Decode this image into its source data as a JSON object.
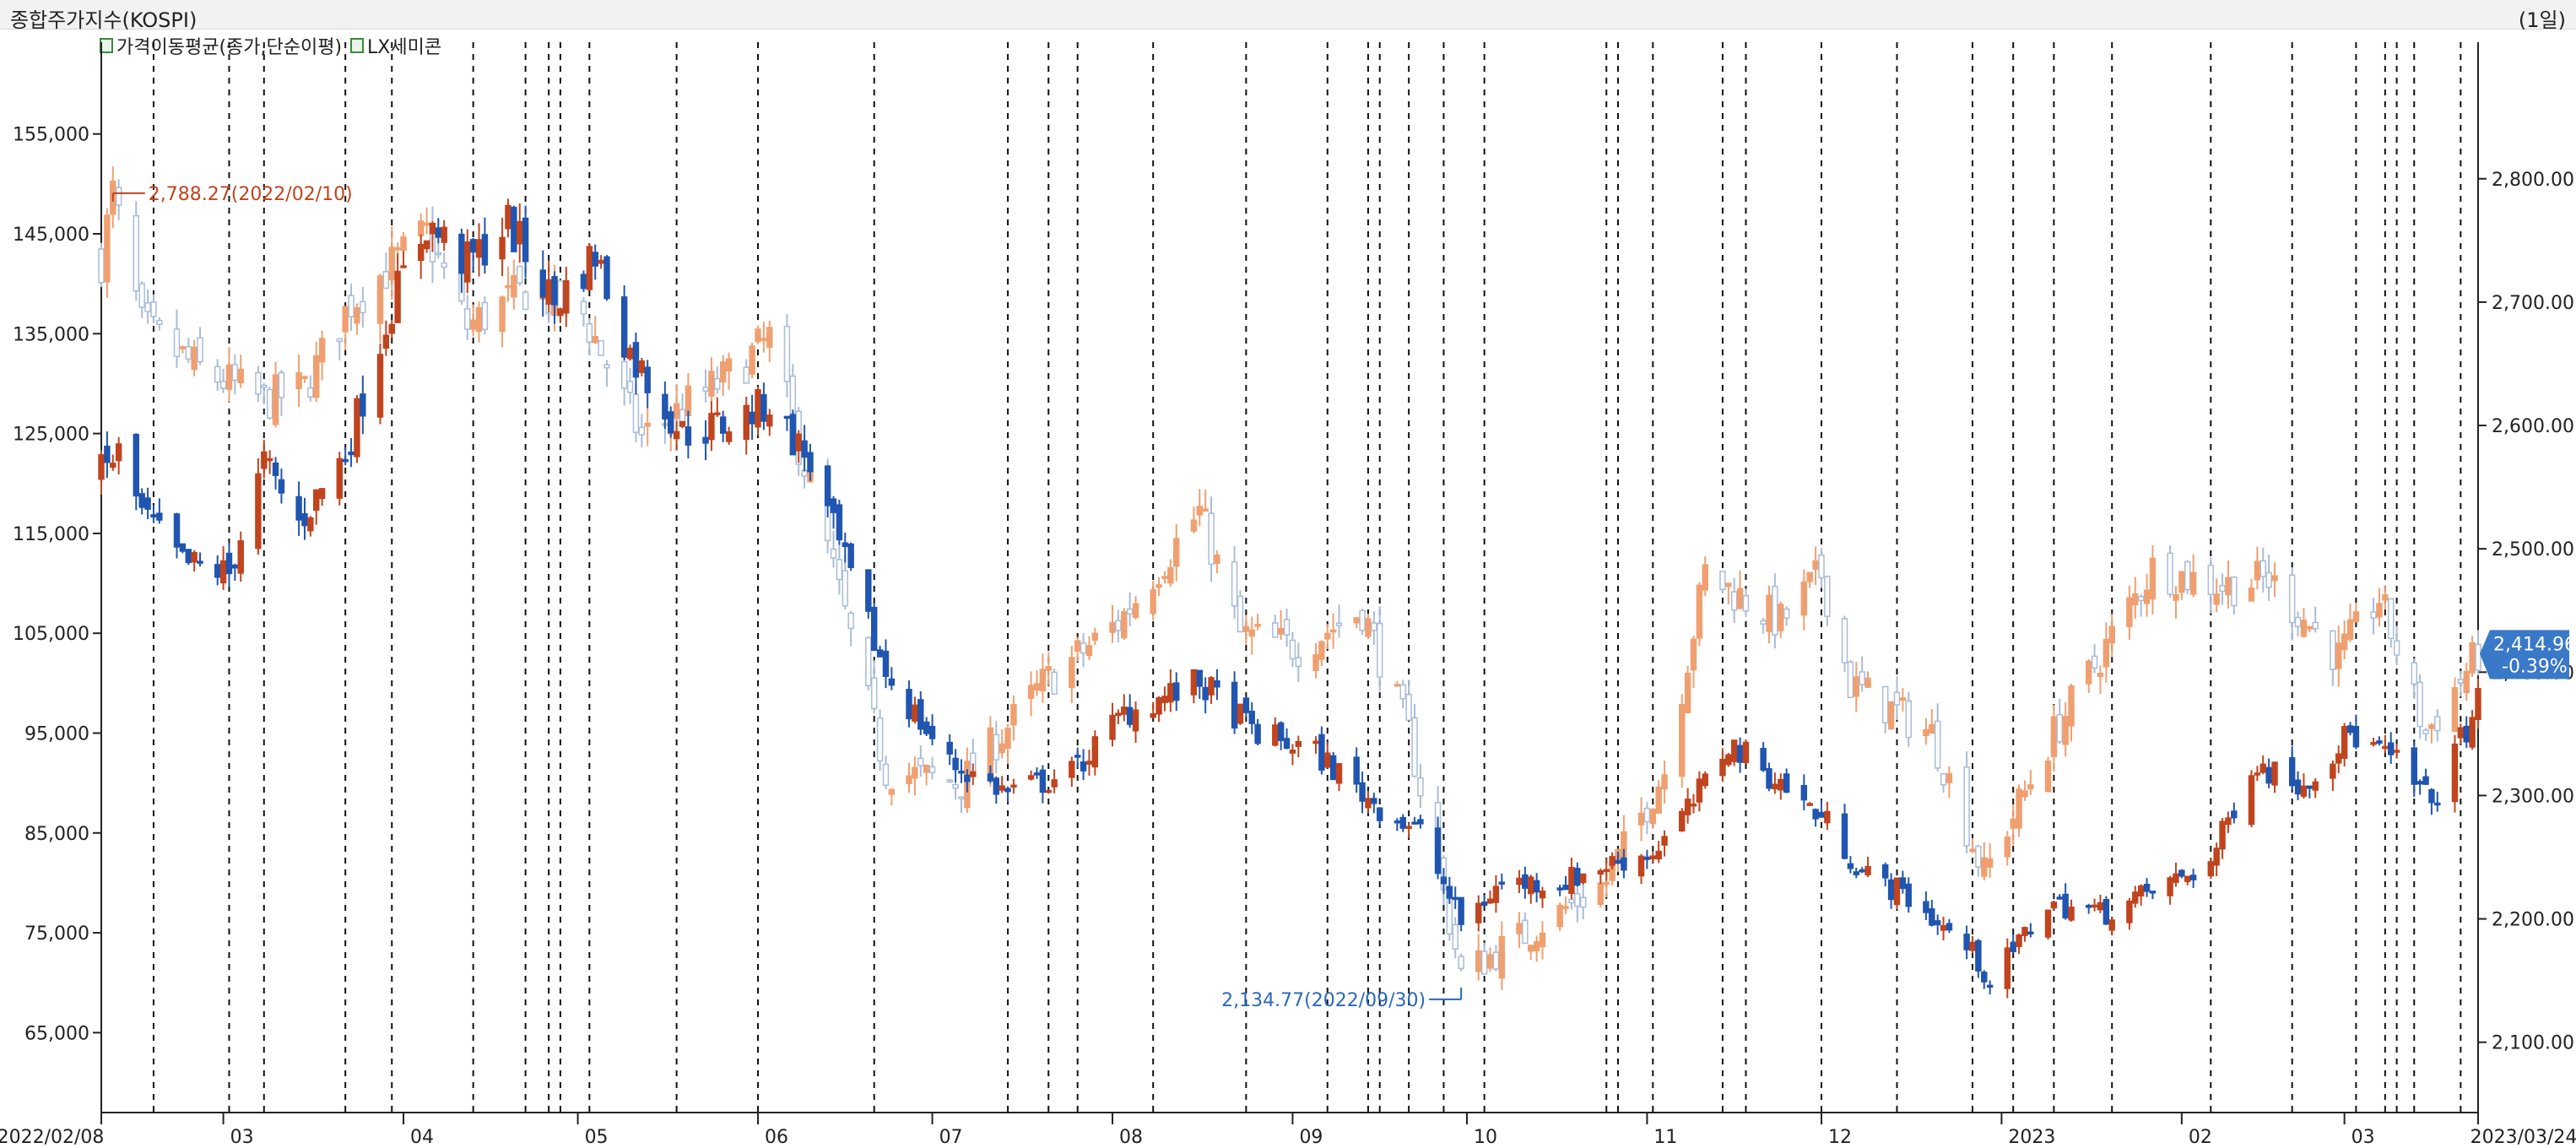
{
  "window": {
    "title": "종합주가지수(KOSPI)",
    "period": "(1일)"
  },
  "legend": {
    "items": [
      {
        "label": "가격이동평균(종가,단순이평)"
      },
      {
        "label": "LX세미콘"
      }
    ]
  },
  "annotations": {
    "high_label": "2,788.27(2022/02/10)",
    "low_label": "2,134.77(2022/09/30)",
    "last_value": "2,414.96",
    "last_change": "-0.39%"
  },
  "colors": {
    "up_primary": "#c0441e",
    "down_primary": "#2055b0",
    "up_secondary": "#f0a070",
    "down_secondary": "#a8bcd8",
    "high_label": "#c0441e",
    "low_label": "#2a68b8",
    "last_badge": "#3a78c8"
  },
  "chart_data": {
    "type": "candlestick",
    "title": "종합주가지수(KOSPI)",
    "x_tick_labels": [
      "2022/02/08",
      "03",
      "04",
      "05",
      "06",
      "07",
      "08",
      "09",
      "10",
      "11",
      "12",
      "2023",
      "02",
      "03",
      "2023/03/24"
    ],
    "x_tick_dates": [
      "2022-02-08",
      "2022-03-01",
      "2022-04-01",
      "2022-05-01",
      "2022-06-01",
      "2022-07-01",
      "2022-08-01",
      "2022-09-01",
      "2022-10-01",
      "2022-11-01",
      "2022-12-01",
      "2023-01-01",
      "2023-02-01",
      "2023-03-01",
      "2023-03-24"
    ],
    "left_axis": {
      "series": "LX세미콘",
      "ticks": [
        65000,
        75000,
        85000,
        95000,
        105000,
        115000,
        125000,
        135000,
        145000,
        155000
      ],
      "tick_labels": [
        "65,000",
        "75,000",
        "85,000",
        "95,000",
        "105,000",
        "115,000",
        "125,000",
        "135,000",
        "145,000",
        "155,000"
      ],
      "range": [
        57000,
        162500
      ]
    },
    "right_axis": {
      "series": "종합주가지수(KOSPI)",
      "ticks": [
        2100,
        2200,
        2300,
        2400,
        2500,
        2600,
        2700,
        2800
      ],
      "tick_labels": [
        "2,100.00",
        "2,200.00",
        "2,300.00",
        "2,400.00",
        "2,500.00",
        "2,600.00",
        "2,700.00",
        "2,800.00"
      ],
      "range": [
        2043,
        2897
      ]
    },
    "kospi_close_anchors": [
      [
        "2022-02-08",
        2735
      ],
      [
        "2022-02-10",
        2788
      ],
      [
        "2022-02-15",
        2680
      ],
      [
        "2022-02-24",
        2648
      ],
      [
        "2022-03-08",
        2620
      ],
      [
        "2022-03-15",
        2630
      ],
      [
        "2022-03-23",
        2700
      ],
      [
        "2022-04-05",
        2755
      ],
      [
        "2022-04-12",
        2680
      ],
      [
        "2022-04-22",
        2710
      ],
      [
        "2022-05-02",
        2690
      ],
      [
        "2022-05-12",
        2590
      ],
      [
        "2022-05-27",
        2640
      ],
      [
        "2022-06-03",
        2670
      ],
      [
        "2022-06-13",
        2500
      ],
      [
        "2022-06-23",
        2320
      ],
      [
        "2022-07-06",
        2310
      ],
      [
        "2022-07-20",
        2390
      ],
      [
        "2022-08-02",
        2440
      ],
      [
        "2022-08-16",
        2530
      ],
      [
        "2022-08-23",
        2430
      ],
      [
        "2022-09-02",
        2420
      ],
      [
        "2022-09-13",
        2450
      ],
      [
        "2022-09-21",
        2350
      ],
      [
        "2022-09-30",
        2155
      ],
      [
        "2022-10-12",
        2190
      ],
      [
        "2022-10-25",
        2230
      ],
      [
        "2022-11-04",
        2320
      ],
      [
        "2022-11-11",
        2480
      ],
      [
        "2022-11-24",
        2440
      ],
      [
        "2022-12-01",
        2480
      ],
      [
        "2022-12-06",
        2390
      ],
      [
        "2022-12-20",
        2350
      ],
      [
        "2022-12-29",
        2236
      ],
      [
        "2023-01-10",
        2350
      ],
      [
        "2023-01-27",
        2484
      ],
      [
        "2023-02-08",
        2470
      ],
      [
        "2023-02-16",
        2475
      ],
      [
        "2023-02-28",
        2412
      ],
      [
        "2023-03-07",
        2460
      ],
      [
        "2023-03-15",
        2350
      ],
      [
        "2023-03-24",
        2415
      ]
    ],
    "lx_close_anchors": [
      [
        "2022-02-08",
        121000
      ],
      [
        "2022-02-11",
        123000
      ],
      [
        "2022-02-15",
        117000
      ],
      [
        "2022-02-22",
        112000
      ],
      [
        "2022-03-02",
        111000
      ],
      [
        "2022-03-08",
        122000
      ],
      [
        "2022-03-14",
        116000
      ],
      [
        "2022-03-22",
        123000
      ],
      [
        "2022-03-30",
        138000
      ],
      [
        "2022-04-05",
        146000
      ],
      [
        "2022-04-12",
        142000
      ],
      [
        "2022-04-19",
        146000
      ],
      [
        "2022-04-27",
        138000
      ],
      [
        "2022-05-04",
        143000
      ],
      [
        "2022-05-10",
        133000
      ],
      [
        "2022-05-19",
        125000
      ],
      [
        "2022-05-27",
        126000
      ],
      [
        "2022-06-03",
        128000
      ],
      [
        "2022-06-10",
        122000
      ],
      [
        "2022-06-16",
        112000
      ],
      [
        "2022-06-23",
        101000
      ],
      [
        "2022-07-04",
        92000
      ],
      [
        "2022-07-14",
        89000
      ],
      [
        "2022-07-25",
        91000
      ],
      [
        "2022-08-03",
        97000
      ],
      [
        "2022-08-16",
        100000
      ],
      [
        "2022-08-26",
        95000
      ],
      [
        "2022-09-05",
        93000
      ],
      [
        "2022-09-15",
        88000
      ],
      [
        "2022-09-23",
        85000
      ],
      [
        "2022-09-30",
        76000
      ],
      [
        "2022-10-07",
        80000
      ],
      [
        "2022-10-17",
        80000
      ],
      [
        "2022-10-26",
        82000
      ],
      [
        "2022-11-02",
        83000
      ],
      [
        "2022-11-09",
        88000
      ],
      [
        "2022-11-15",
        94000
      ],
      [
        "2022-11-24",
        90000
      ],
      [
        "2022-12-02",
        86000
      ],
      [
        "2022-12-08",
        81000
      ],
      [
        "2022-12-15",
        79000
      ],
      [
        "2022-12-27",
        73000
      ],
      [
        "2022-12-30",
        70000
      ],
      [
        "2023-01-09",
        78000
      ],
      [
        "2023-01-19",
        77000
      ],
      [
        "2023-01-30",
        80000
      ],
      [
        "2023-02-06",
        82000
      ],
      [
        "2023-02-13",
        92000
      ],
      [
        "2023-02-22",
        90000
      ],
      [
        "2023-03-02",
        95000
      ],
      [
        "2023-03-10",
        92000
      ],
      [
        "2023-03-16",
        88000
      ],
      [
        "2023-03-24",
        98000
      ]
    ],
    "kospi_annotations": [
      {
        "date": "2022-02-10",
        "value": 2788.27,
        "label": "2,788.27(2022/02/10)",
        "kind": "high"
      },
      {
        "date": "2022-09-30",
        "value": 2134.77,
        "label": "2,134.77(2022/09/30)",
        "kind": "low"
      },
      {
        "date": "2023-03-24",
        "value": 2414.96,
        "label": "2,414.96",
        "change": "-0.39%",
        "kind": "last"
      }
    ],
    "event_marker_dates": [
      "2022-02-17",
      "2022-03-02",
      "2022-03-08",
      "2022-03-22",
      "2022-03-30",
      "2022-04-13",
      "2022-04-22",
      "2022-04-26",
      "2022-04-28",
      "2022-05-03",
      "2022-05-18",
      "2022-06-01",
      "2022-06-21",
      "2022-07-14",
      "2022-07-21",
      "2022-07-26",
      "2022-08-08",
      "2022-08-24",
      "2022-09-07",
      "2022-09-14",
      "2022-09-16",
      "2022-09-21",
      "2022-09-27",
      "2022-10-04",
      "2022-10-25",
      "2022-10-27",
      "2022-11-02",
      "2022-11-14",
      "2022-11-18",
      "2022-12-01",
      "2022-12-14",
      "2022-12-27",
      "2023-01-03",
      "2023-01-10",
      "2023-01-20",
      "2023-02-06",
      "2023-02-20",
      "2023-03-03",
      "2023-03-08",
      "2023-03-10",
      "2023-03-13",
      "2023-03-21"
    ],
    "grid": false,
    "legend_position": "top-left"
  }
}
